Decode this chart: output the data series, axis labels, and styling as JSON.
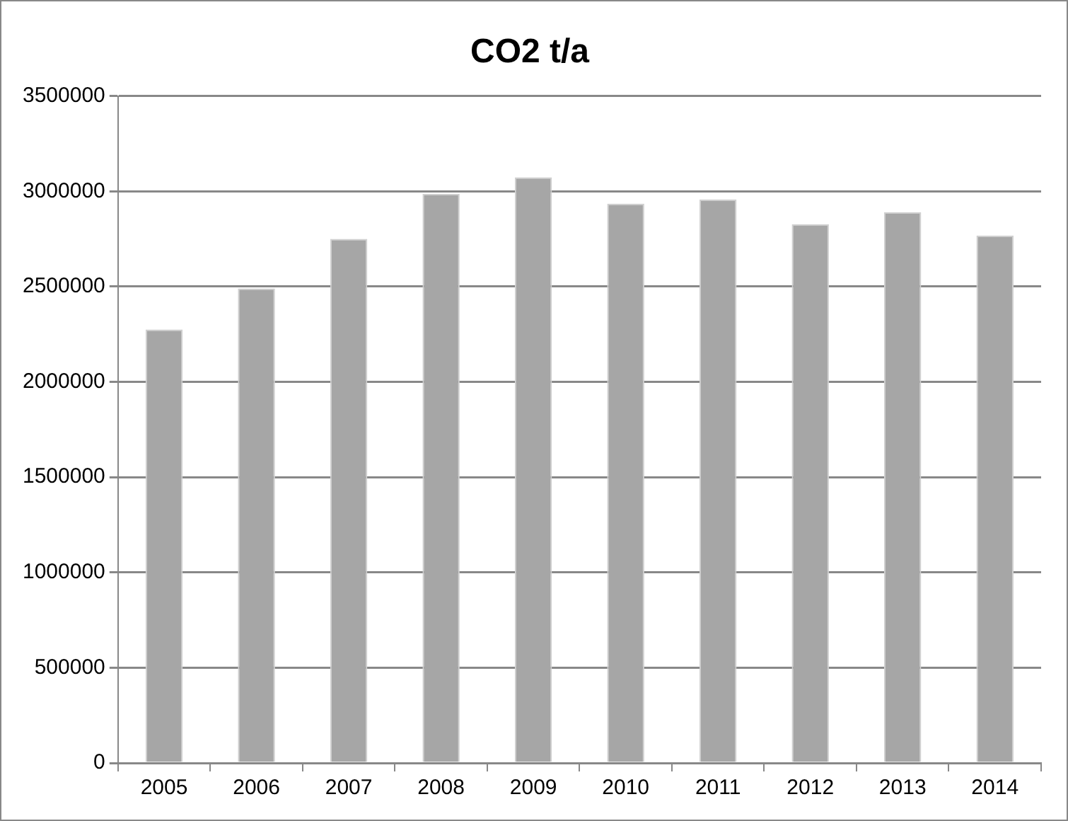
{
  "chart_data": {
    "type": "bar",
    "title": "CO2 t/a",
    "categories": [
      "2005",
      "2006",
      "2007",
      "2008",
      "2009",
      "2010",
      "2011",
      "2012",
      "2013",
      "2014"
    ],
    "values": [
      2275000,
      2490000,
      2750000,
      2987000,
      3073000,
      2935000,
      2957000,
      2827000,
      2890000,
      2768000
    ],
    "color": "#a6a6a6",
    "ylim": [
      0,
      3500000
    ],
    "yticks": [
      0,
      500000,
      1000000,
      1500000,
      2000000,
      2500000,
      3000000,
      3500000
    ],
    "grid": "y",
    "legend": false
  }
}
